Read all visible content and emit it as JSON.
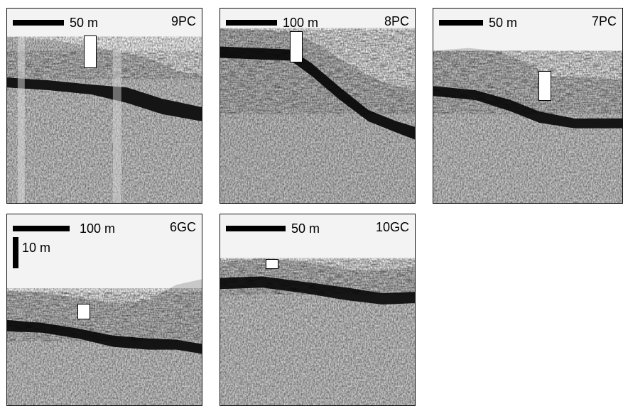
{
  "panels": [
    {
      "id": "9PC",
      "scale_label": "50 m",
      "site_label": "9PC"
    },
    {
      "id": "8PC",
      "scale_label": "100 m",
      "site_label": "8PC"
    },
    {
      "id": "7PC",
      "scale_label": "50 m",
      "site_label": "7PC"
    },
    {
      "id": "6GC",
      "scale_label": "100 m",
      "site_label": "6GC",
      "vertical_scale_label": "10 m"
    },
    {
      "id": "10GC",
      "scale_label": "50 m",
      "site_label": "10GC"
    }
  ]
}
